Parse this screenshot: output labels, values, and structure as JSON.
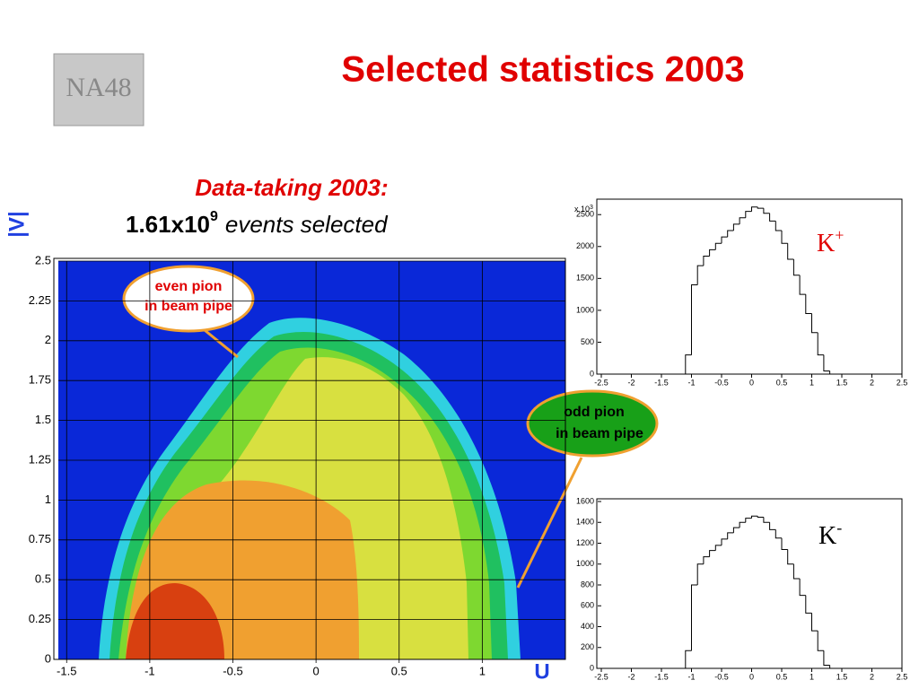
{
  "slide": {
    "logo": "NA48",
    "title": "Selected statistics 2003",
    "subtitle_line1": "Data-taking 2003:",
    "count_base": "1.61x10",
    "count_exponent": "9",
    "count_suffix": "events selected"
  },
  "chart_data": [
    {
      "type": "contour",
      "ylabel": "|V|",
      "xlabel": "U",
      "xlim": [
        -1.55,
        1.5
      ],
      "ylim": [
        0,
        2.5
      ],
      "xticks": [
        -1.5,
        -1,
        -0.5,
        0,
        0.5,
        1
      ],
      "yticks": [
        0,
        0.25,
        0.5,
        0.75,
        1,
        1.25,
        1.5,
        1.75,
        2,
        2.25,
        2.5
      ],
      "grid": true,
      "annotations": [
        "even pion",
        "in beam pipe",
        "odd pion",
        "in beam pipe"
      ]
    },
    {
      "type": "histogram",
      "label": "K",
      "label_sup": "+",
      "scale_base": "x 10",
      "scale_exponent": "3",
      "color": "#000000",
      "bins": [
        -1.2,
        -1.1,
        -1.0,
        -0.9,
        -0.8,
        -0.7,
        -0.6,
        -0.5,
        -0.4,
        -0.3,
        -0.2,
        -0.1,
        0,
        0.1,
        0.2,
        0.3,
        0.4,
        0.5,
        0.6,
        0.7,
        0.8,
        0.9,
        1.0,
        1.1,
        1.2,
        1.3
      ],
      "values": [
        0,
        300,
        1400,
        1700,
        1850,
        1950,
        2050,
        2150,
        2250,
        2350,
        2450,
        2550,
        2620,
        2600,
        2520,
        2400,
        2250,
        2050,
        1800,
        1550,
        1250,
        950,
        650,
        300,
        50
      ],
      "xlim": [
        -2.5,
        2.5
      ],
      "ylim": [
        0,
        2700
      ],
      "xticks": [
        -2.5,
        -2,
        -1.5,
        -1,
        -0.5,
        0,
        0.5,
        1,
        1.5,
        2,
        2.5
      ],
      "yticks": [
        0,
        500,
        1000,
        1500,
        2000,
        2500
      ]
    },
    {
      "type": "histogram",
      "label": "K",
      "label_sup": "-",
      "color": "#000000",
      "bins": [
        -1.2,
        -1.1,
        -1.0,
        -0.9,
        -0.8,
        -0.7,
        -0.6,
        -0.5,
        -0.4,
        -0.3,
        -0.2,
        -0.1,
        0,
        0.1,
        0.2,
        0.3,
        0.4,
        0.5,
        0.6,
        0.7,
        0.8,
        0.9,
        1.0,
        1.1,
        1.2,
        1.3
      ],
      "values": [
        0,
        170,
        800,
        1000,
        1070,
        1130,
        1180,
        1240,
        1300,
        1350,
        1400,
        1440,
        1460,
        1450,
        1400,
        1330,
        1250,
        1140,
        1000,
        860,
        700,
        530,
        360,
        170,
        30
      ],
      "xlim": [
        -2.5,
        2.5
      ],
      "ylim": [
        0,
        1600
      ],
      "xticks": [
        -2.5,
        -2,
        -1.5,
        -1,
        -0.5,
        0,
        0.5,
        1,
        1.5,
        2,
        2.5
      ],
      "yticks": [
        0,
        200,
        400,
        600,
        800,
        1000,
        1200,
        1400,
        1600
      ]
    }
  ]
}
